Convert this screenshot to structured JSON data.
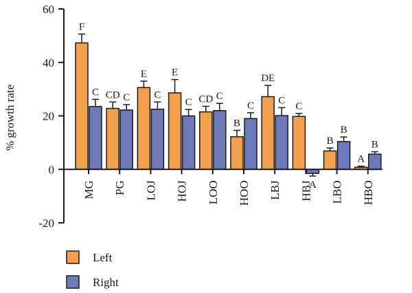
{
  "chart_data": {
    "type": "bar",
    "ylabel": "% growth rate",
    "ylim": [
      -20,
      60
    ],
    "yticks": [
      60,
      40,
      20,
      0,
      -20
    ],
    "categories": [
      "MG",
      "PG",
      "LOJ",
      "HOJ",
      "LOO",
      "HOO",
      "LBJ",
      "HBJ",
      "LBO",
      "HBO"
    ],
    "series": [
      {
        "name": "Left",
        "color": "#f0a04e",
        "values": [
          47.3,
          22.8,
          30.6,
          28.6,
          21.5,
          12.2,
          27.2,
          19.8,
          6.9,
          0.8
        ],
        "errors": [
          3.3,
          2.4,
          2.4,
          5.0,
          2.1,
          2.4,
          4.2,
          1.1,
          1.1,
          0.4
        ],
        "letters": [
          "F",
          "CD",
          "E",
          "E",
          "CD",
          "B",
          "DE",
          "C",
          "B",
          "A"
        ]
      },
      {
        "name": "Right",
        "color": "#6e79b8",
        "values": [
          23.5,
          22.2,
          22.5,
          20.0,
          22.0,
          19.0,
          20.1,
          -1.5,
          10.4,
          5.7
        ],
        "errors": [
          2.7,
          2.0,
          2.7,
          2.4,
          2.7,
          2.2,
          3.0,
          1.0,
          1.7,
          0.9
        ],
        "letters": [
          "C",
          "C",
          "C",
          "C",
          "C",
          "C",
          "C",
          "A",
          "B",
          "B"
        ]
      }
    ],
    "legend": "bottom-left"
  }
}
